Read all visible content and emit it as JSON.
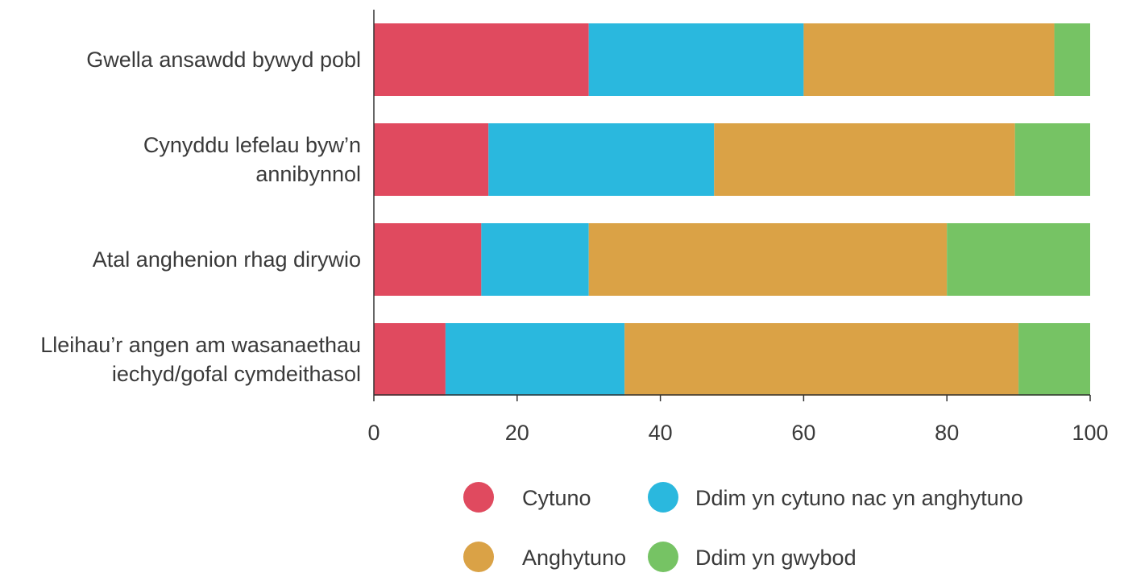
{
  "chart_data": {
    "type": "bar",
    "orientation": "horizontal",
    "stacked": true,
    "categories": [
      [
        "Gwella ansawdd bywyd pobl"
      ],
      [
        "Cynyddu lefelau byw’n",
        "annibynnol"
      ],
      [
        "Atal anghenion rhag dirywio"
      ],
      [
        "Lleihau’r angen am wasanaethau",
        "iechyd/gofal cymdeithasol"
      ]
    ],
    "series": [
      {
        "name": "Cytuno",
        "color": "#e04a5f",
        "values": [
          30,
          16,
          15,
          10
        ]
      },
      {
        "name": "Ddim yn cytuno nac yn anghytuno",
        "color": "#2ab8de",
        "values": [
          30,
          31.5,
          15,
          25
        ]
      },
      {
        "name": "Anghytuno",
        "color": "#daa246",
        "values": [
          35,
          42,
          50,
          55
        ]
      },
      {
        "name": "Ddim yn gwybod",
        "color": "#76c364",
        "values": [
          5,
          10.5,
          20,
          10
        ]
      }
    ],
    "xlim": [
      0,
      100
    ],
    "xticks": [
      "0",
      "20",
      "40",
      "60",
      "80",
      "100"
    ],
    "grid": false,
    "legend_position": "bottom",
    "legend_layout": [
      [
        0,
        1
      ],
      [
        2,
        3
      ]
    ],
    "title": "",
    "xlabel": "",
    "ylabel": ""
  }
}
